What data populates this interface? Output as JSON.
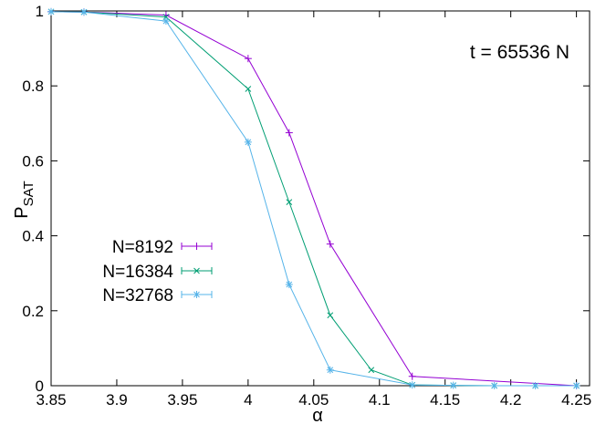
{
  "chart_data": {
    "type": "line",
    "title": "",
    "annotation": "t = 65536 N",
    "xlabel": "α",
    "ylabel_main": "P",
    "ylabel_sub": "SAT",
    "xlim": [
      3.85,
      4.26
    ],
    "ylim": [
      0,
      1
    ],
    "xticks": [
      3.85,
      3.9,
      3.95,
      4.0,
      4.05,
      4.1,
      4.15,
      4.2,
      4.25
    ],
    "xtick_labels": [
      "3.85",
      "3.9",
      "3.95",
      "4",
      "4.05",
      "4.1",
      "4.15",
      "4.2",
      "4.25"
    ],
    "yticks": [
      0,
      0.2,
      0.4,
      0.6,
      0.8,
      1.0
    ],
    "ytick_labels": [
      "0",
      "0.2",
      "0.4",
      "0.6",
      "0.8",
      "1"
    ],
    "grid": false,
    "legend_position": "middle-left",
    "series": [
      {
        "name": "N=8192",
        "color": "#9400d3",
        "marker": "plus",
        "x": [
          3.85,
          3.875,
          3.9375,
          4.0,
          4.03125,
          4.0625,
          4.125,
          4.25
        ],
        "y": [
          0.998,
          0.997,
          0.989,
          0.873,
          0.675,
          0.378,
          0.025,
          0.0
        ]
      },
      {
        "name": "N=16384",
        "color": "#009e73",
        "marker": "cross",
        "x": [
          3.85,
          3.875,
          3.9375,
          4.0,
          4.03125,
          4.0625,
          4.09375,
          4.125,
          4.15625,
          4.1875,
          4.21875,
          4.25
        ],
        "y": [
          0.998,
          0.997,
          0.984,
          0.792,
          0.49,
          0.188,
          0.042,
          0.002,
          0.001,
          0.0,
          0.0,
          0.0
        ]
      },
      {
        "name": "N=32768",
        "color": "#56b4e9",
        "marker": "star",
        "x": [
          3.85,
          3.875,
          3.9375,
          4.0,
          4.03125,
          4.0625,
          4.125,
          4.15625,
          4.1875,
          4.21875,
          4.25
        ],
        "y": [
          0.998,
          0.997,
          0.973,
          0.65,
          0.27,
          0.042,
          0.002,
          0.001,
          0.0,
          0.0,
          0.0
        ]
      }
    ]
  }
}
